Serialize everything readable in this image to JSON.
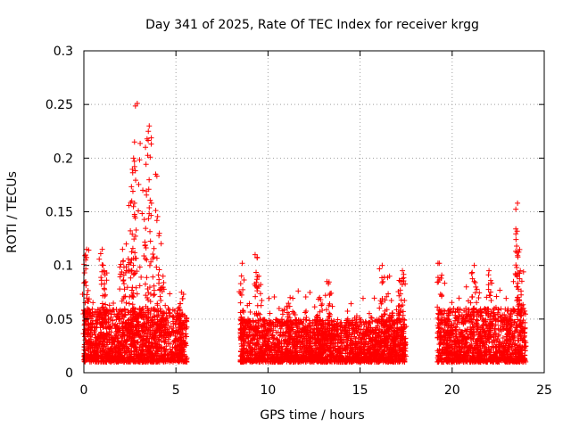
{
  "chart_data": {
    "type": "scatter",
    "title": "Day 341 of 2025, Rate Of TEC Index for receiver krgg",
    "xlabel": "GPS time / hours",
    "ylabel": "ROTI / TECUs",
    "xlim": [
      0,
      25
    ],
    "ylim": [
      0,
      0.3
    ],
    "xticks": [
      0,
      5,
      10,
      15,
      20,
      25
    ],
    "xtick_labels": [
      "0",
      "5",
      "10",
      "15",
      "20",
      "25"
    ],
    "yticks": [
      0,
      0.05,
      0.1,
      0.15,
      0.2,
      0.25,
      0.3
    ],
    "ytick_labels": [
      "0",
      "0.05",
      "0.1",
      "0.15",
      "0.2",
      "0.25",
      "0.3"
    ],
    "grid": true,
    "marker": "plus",
    "color": "#ff0000",
    "series": [
      {
        "name": "ROTI",
        "segments": [
          {
            "x_range": [
              0.0,
              5.6
            ],
            "baseline": [
              0.01,
              0.06
            ]
          },
          {
            "x_range": [
              8.5,
              17.5
            ],
            "baseline": [
              0.01,
              0.05
            ]
          },
          {
            "x_range": [
              19.2,
              24.0
            ],
            "baseline": [
              0.01,
              0.06
            ]
          }
        ],
        "notable_points": [
          {
            "x": 0.1,
            "y": 0.105
          },
          {
            "x": 0.15,
            "y": 0.115
          },
          {
            "x": 1.0,
            "y": 0.115
          },
          {
            "x": 1.1,
            "y": 0.095
          },
          {
            "x": 2.1,
            "y": 0.115
          },
          {
            "x": 2.3,
            "y": 0.12
          },
          {
            "x": 2.6,
            "y": 0.16
          },
          {
            "x": 2.7,
            "y": 0.2
          },
          {
            "x": 2.75,
            "y": 0.215
          },
          {
            "x": 2.9,
            "y": 0.251
          },
          {
            "x": 3.2,
            "y": 0.17
          },
          {
            "x": 3.5,
            "y": 0.225
          },
          {
            "x": 3.55,
            "y": 0.23
          },
          {
            "x": 3.9,
            "y": 0.185
          },
          {
            "x": 4.1,
            "y": 0.13
          },
          {
            "x": 4.3,
            "y": 0.09
          },
          {
            "x": 5.3,
            "y": 0.075
          },
          {
            "x": 8.6,
            "y": 0.102
          },
          {
            "x": 9.3,
            "y": 0.11
          },
          {
            "x": 9.5,
            "y": 0.09
          },
          {
            "x": 11.2,
            "y": 0.07
          },
          {
            "x": 12.8,
            "y": 0.07
          },
          {
            "x": 13.2,
            "y": 0.085
          },
          {
            "x": 16.2,
            "y": 0.1
          },
          {
            "x": 16.6,
            "y": 0.09
          },
          {
            "x": 17.2,
            "y": 0.085
          },
          {
            "x": 17.3,
            "y": 0.095
          },
          {
            "x": 19.3,
            "y": 0.102
          },
          {
            "x": 21.2,
            "y": 0.1
          },
          {
            "x": 22.0,
            "y": 0.095
          },
          {
            "x": 23.5,
            "y": 0.118
          },
          {
            "x": 23.55,
            "y": 0.158
          },
          {
            "x": 23.7,
            "y": 0.095
          }
        ]
      }
    ]
  }
}
